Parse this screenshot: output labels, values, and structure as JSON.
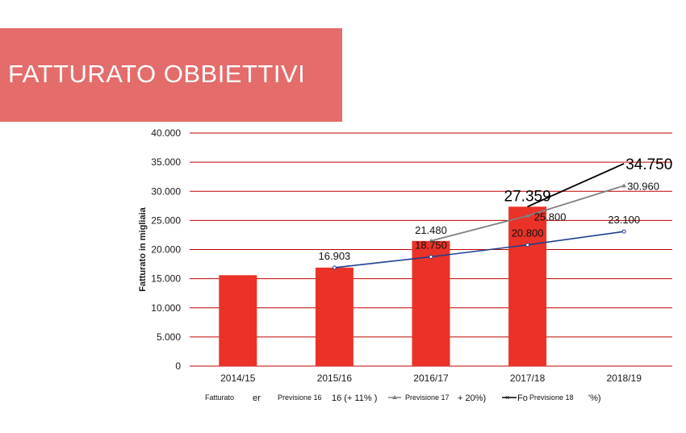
{
  "slide": {
    "title": "FATTURATO OBBIETTIVI"
  },
  "colors": {
    "banner": "#e46c6a",
    "bar": "#ea3228",
    "grid": "#c00000",
    "prev16": "#1f3f8f",
    "prev17": "#808080",
    "prev18": "#000000"
  },
  "chart_data": {
    "type": "bar",
    "ylabel": "Fatturato in migliaia",
    "ylim": [
      0,
      40000
    ],
    "ytick_labels": [
      "0",
      "5.000",
      "10.000",
      "15.000",
      "20.000",
      "25.000",
      "30.000",
      "35.000",
      "40.000"
    ],
    "ytick_values": [
      0,
      5000,
      10000,
      15000,
      20000,
      25000,
      30000,
      35000,
      40000
    ],
    "categories": [
      "2014/15",
      "2015/16",
      "2016/17",
      "2017/18",
      "2018/19"
    ],
    "bars": {
      "name": "Fatturato",
      "values": [
        15600,
        16903,
        21480,
        27359,
        null
      ]
    },
    "lines": [
      {
        "name": "Previsione 16",
        "values": [
          null,
          16903,
          18750,
          20800,
          23100
        ],
        "labels": [
          "",
          "16.903",
          "18.750",
          "20.800",
          "23.100"
        ]
      },
      {
        "name": "Previsione 17",
        "values": [
          null,
          null,
          21480,
          25800,
          30960
        ],
        "labels": [
          "",
          "",
          "21.480",
          "25.800",
          "30.960"
        ]
      },
      {
        "name": "Previsione 18",
        "values": [
          null,
          null,
          null,
          27359,
          34750
        ],
        "labels": [
          "",
          "",
          "",
          "27.359",
          "34.750"
        ]
      }
    ],
    "legend": [
      {
        "text": "Fatturato",
        "suffix": "er"
      },
      {
        "text": "Previsione 16",
        "suffix": "16 (+ 11% )"
      },
      {
        "text": "Previsione 17",
        "suffix": "+ 20%)"
      },
      {
        "text": "Previsione 18",
        "prefix": "Fo",
        "suffix": "'%)"
      }
    ],
    "legend_position": "bottom",
    "grid": true
  }
}
